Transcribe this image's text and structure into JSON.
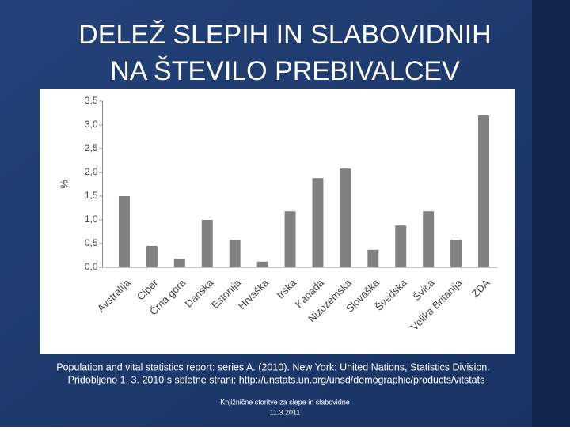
{
  "title": [
    "DELEŽ SLEPIH IN SLABOVIDNIH",
    "NA ŠTEVILO PREBIVALCEV"
  ],
  "chart_data": {
    "type": "bar",
    "y_label": "%",
    "categories": [
      "Avstralija",
      "Ciper",
      "Črna gora",
      "Danska",
      "Estonija",
      "Hrvaška",
      "Irska",
      "Kanada",
      "Nizozemska",
      "Slovaška",
      "Švedska",
      "Švica",
      "Velika Britanija",
      "ZDA"
    ],
    "values": [
      1.5,
      0.45,
      0.18,
      1.0,
      0.58,
      0.12,
      1.18,
      1.88,
      2.08,
      0.37,
      0.88,
      1.18,
      0.58,
      3.2
    ],
    "color": "#808080",
    "ylim": [
      0,
      3.5
    ],
    "yticks": [
      {
        "value": 0,
        "label": "0,0"
      },
      {
        "value": 0.5,
        "label": "0,5"
      },
      {
        "value": 1,
        "label": "1,0"
      },
      {
        "value": 1.5,
        "label": "1,5"
      },
      {
        "value": 2,
        "label": "2,0"
      },
      {
        "value": 2.5,
        "label": "2,5"
      },
      {
        "value": 3,
        "label": "3,0"
      },
      {
        "value": 3.5,
        "label": "3,5"
      }
    ],
    "grid": false
  },
  "source": [
    "Population and vital statistics report: series A. (2010). New York: United Nations, Statistics Division.",
    "Pridobljeno 1. 3. 2010 s spletne strani: http://unstats.un.org/unsd/demographic/products/vitstats"
  ],
  "footer": [
    "Knjižnične storitve za slepe in slabovidne",
    "11.3.2011"
  ]
}
